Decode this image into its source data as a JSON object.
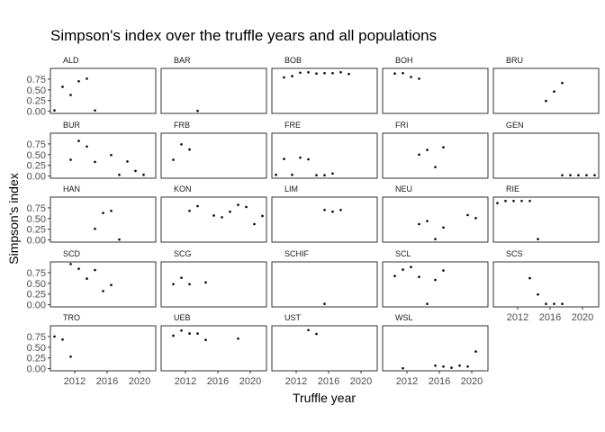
{
  "chart_data": {
    "type": "scatter",
    "title": "Simpson's index over the truffle years and all populations",
    "xlabel": "Truffle year",
    "ylabel": "Simpson's index",
    "x_ticks": [
      2012,
      2016,
      2020
    ],
    "y_ticks": [
      "0.00",
      "0.25",
      "0.50",
      "0.75"
    ],
    "xlim": [
      2009,
      2022
    ],
    "ylim": [
      -0.05,
      1.0
    ],
    "grid": false,
    "facets": [
      {
        "name": "ALD",
        "points": [
          [
            2009.5,
            0.02
          ],
          [
            2010.5,
            0.57
          ],
          [
            2011.5,
            0.38
          ],
          [
            2012.5,
            0.7
          ],
          [
            2013.5,
            0.76
          ],
          [
            2014.5,
            0.02
          ]
        ]
      },
      {
        "name": "BAR",
        "points": [
          [
            2013.5,
            0.01
          ]
        ]
      },
      {
        "name": "BOB",
        "points": [
          [
            2010.5,
            0.79
          ],
          [
            2011.5,
            0.82
          ],
          [
            2012.5,
            0.9
          ],
          [
            2013.5,
            0.91
          ],
          [
            2014.5,
            0.88
          ],
          [
            2015.5,
            0.89
          ],
          [
            2016.5,
            0.89
          ],
          [
            2017.5,
            0.91
          ],
          [
            2018.5,
            0.87
          ]
        ]
      },
      {
        "name": "BOH",
        "points": [
          [
            2010.5,
            0.88
          ],
          [
            2011.5,
            0.89
          ],
          [
            2012.5,
            0.8
          ],
          [
            2013.5,
            0.76
          ]
        ]
      },
      {
        "name": "BRU",
        "points": [
          [
            2015.5,
            0.24
          ],
          [
            2016.5,
            0.46
          ],
          [
            2017.5,
            0.66
          ]
        ]
      },
      {
        "name": "BUR",
        "points": [
          [
            2011.5,
            0.38
          ],
          [
            2012.5,
            0.82
          ],
          [
            2013.5,
            0.69
          ],
          [
            2014.5,
            0.33
          ],
          [
            2016.5,
            0.49
          ],
          [
            2017.5,
            0.03
          ],
          [
            2018.5,
            0.34
          ],
          [
            2019.5,
            0.12
          ],
          [
            2020.5,
            0.03
          ]
        ]
      },
      {
        "name": "FRB",
        "points": [
          [
            2010.5,
            0.38
          ],
          [
            2011.5,
            0.74
          ],
          [
            2012.5,
            0.62
          ]
        ]
      },
      {
        "name": "FRE",
        "points": [
          [
            2009.5,
            0.03
          ],
          [
            2010.5,
            0.4
          ],
          [
            2011.5,
            0.03
          ],
          [
            2012.5,
            0.43
          ],
          [
            2013.5,
            0.39
          ],
          [
            2014.5,
            0.02
          ],
          [
            2015.5,
            0.02
          ],
          [
            2016.5,
            0.06
          ]
        ]
      },
      {
        "name": "FRI",
        "points": [
          [
            2013.5,
            0.5
          ],
          [
            2014.5,
            0.61
          ],
          [
            2015.5,
            0.21
          ],
          [
            2016.5,
            0.67
          ]
        ]
      },
      {
        "name": "GEN",
        "points": [
          [
            2017.5,
            0.02
          ],
          [
            2018.5,
            0.02
          ],
          [
            2019.5,
            0.02
          ],
          [
            2020.5,
            0.02
          ],
          [
            2021.5,
            0.02
          ]
        ]
      },
      {
        "name": "HAN",
        "points": [
          [
            2014.5,
            0.26
          ],
          [
            2015.5,
            0.63
          ],
          [
            2016.5,
            0.68
          ],
          [
            2017.5,
            0.01
          ]
        ]
      },
      {
        "name": "KON",
        "points": [
          [
            2012.5,
            0.68
          ],
          [
            2013.5,
            0.79
          ],
          [
            2015.5,
            0.57
          ],
          [
            2016.5,
            0.53
          ],
          [
            2017.5,
            0.66
          ],
          [
            2018.5,
            0.82
          ],
          [
            2019.5,
            0.77
          ],
          [
            2020.5,
            0.37
          ],
          [
            2021.5,
            0.56
          ],
          [
            2022.5,
            0.39
          ]
        ]
      },
      {
        "name": "LIM",
        "points": [
          [
            2015.5,
            0.7
          ],
          [
            2016.5,
            0.66
          ],
          [
            2017.5,
            0.7
          ]
        ]
      },
      {
        "name": "NEU",
        "points": [
          [
            2013.5,
            0.37
          ],
          [
            2014.5,
            0.44
          ],
          [
            2015.5,
            0.02
          ],
          [
            2016.5,
            0.29
          ],
          [
            2019.5,
            0.58
          ],
          [
            2020.5,
            0.51
          ]
        ]
      },
      {
        "name": "RIE",
        "points": [
          [
            2009.5,
            0.86
          ],
          [
            2010.5,
            0.91
          ],
          [
            2011.5,
            0.91
          ],
          [
            2012.5,
            0.91
          ],
          [
            2013.5,
            0.91
          ],
          [
            2014.5,
            0.02
          ]
        ]
      },
      {
        "name": "SCD",
        "points": [
          [
            2011.5,
            0.95
          ],
          [
            2012.5,
            0.84
          ],
          [
            2013.5,
            0.61
          ],
          [
            2014.5,
            0.81
          ],
          [
            2015.5,
            0.32
          ],
          [
            2016.5,
            0.46
          ]
        ]
      },
      {
        "name": "SCG",
        "points": [
          [
            2010.5,
            0.48
          ],
          [
            2011.5,
            0.63
          ],
          [
            2012.5,
            0.48
          ],
          [
            2014.5,
            0.52
          ]
        ]
      },
      {
        "name": "SCHIF",
        "points": [
          [
            2015.5,
            0.02
          ]
        ]
      },
      {
        "name": "SCL",
        "points": [
          [
            2010.5,
            0.67
          ],
          [
            2011.5,
            0.82
          ],
          [
            2012.5,
            0.88
          ],
          [
            2013.5,
            0.65
          ],
          [
            2014.5,
            0.02
          ],
          [
            2015.5,
            0.58
          ],
          [
            2016.5,
            0.8
          ]
        ]
      },
      {
        "name": "SCS",
        "points": [
          [
            2013.5,
            0.62
          ],
          [
            2014.5,
            0.24
          ],
          [
            2015.5,
            0.02
          ],
          [
            2016.5,
            0.02
          ],
          [
            2017.5,
            0.02
          ]
        ]
      },
      {
        "name": "TRO",
        "points": [
          [
            2009.5,
            0.75
          ],
          [
            2010.5,
            0.68
          ],
          [
            2011.5,
            0.28
          ]
        ]
      },
      {
        "name": "UEB",
        "points": [
          [
            2010.5,
            0.77
          ],
          [
            2011.5,
            0.89
          ],
          [
            2012.5,
            0.82
          ],
          [
            2013.5,
            0.82
          ],
          [
            2014.5,
            0.67
          ],
          [
            2018.5,
            0.7
          ]
        ]
      },
      {
        "name": "UST",
        "points": [
          [
            2013.5,
            0.9
          ],
          [
            2014.5,
            0.81
          ]
        ]
      },
      {
        "name": "WSL",
        "points": [
          [
            2011.5,
            0.01
          ],
          [
            2015.5,
            0.07
          ],
          [
            2016.5,
            0.05
          ],
          [
            2017.5,
            0.02
          ],
          [
            2018.5,
            0.07
          ],
          [
            2019.5,
            0.05
          ],
          [
            2020.5,
            0.4
          ]
        ]
      }
    ]
  }
}
